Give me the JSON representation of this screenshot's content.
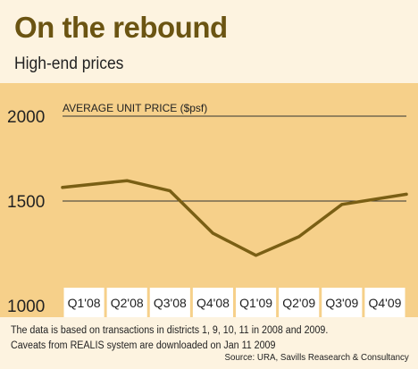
{
  "header": {
    "title": "On the rebound",
    "subtitle": "High-end prices"
  },
  "colors": {
    "title": "#6b5412",
    "background": "#fdf3e0",
    "plot_background": "#f6d08a",
    "line": "#7a5f14",
    "tick_box": "#ffffff"
  },
  "chart_data": {
    "type": "line",
    "title": "",
    "ylabel": "AVERAGE UNIT PRICE ($psf)",
    "xlabel": "",
    "categories": [
      "Q1'08",
      "Q2'08",
      "Q3'08",
      "Q4'08",
      "Q1'09",
      "Q2'09",
      "Q3'09",
      "Q4'09"
    ],
    "yticks": [
      1000,
      1500,
      2000
    ],
    "ylim": [
      1000,
      2000
    ],
    "grid": true,
    "series": [
      {
        "name": "",
        "values": [
          1580,
          1620,
          1560,
          1310,
          1180,
          1290,
          1480,
          1540
        ]
      }
    ]
  },
  "footer": {
    "note_line1": "The data is based on transactions in districts 1, 9, 10, 11 in 2008 and 2009.",
    "note_line2": "Caveats from REALIS system are downloaded on Jan 11 2009",
    "source": "Source: URA, Savills Reasearch & Consultancy"
  }
}
